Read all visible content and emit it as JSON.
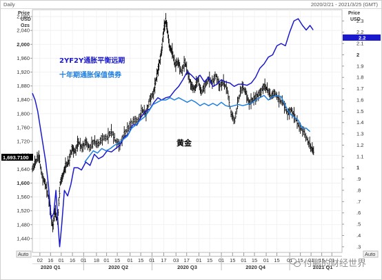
{
  "header": {
    "interval": "Daily",
    "date_range": "2020/2/21 - 2021/3/25 (GMT)"
  },
  "watermark": {
    "text": "付鹏的财经世界",
    "icon": "wechat-icon"
  },
  "colors": {
    "gold": "#000000",
    "breakeven_2y2y": "#1a1acc",
    "tips_10y": "#1f7fe0",
    "price_tag": "#000000",
    "right_tag": "#1a1acc"
  },
  "chart_data": {
    "type": "line",
    "left_axis": {
      "label_lines": [
        "Price",
        "USD",
        "Ozs"
      ],
      "ylim": [
        1400,
        2100
      ],
      "ticks": [
        "1,440",
        "1,480",
        "1,520",
        "1,560",
        "1,600",
        "1,640",
        "1,680",
        "1,720",
        "1,760",
        "1,800",
        "1,840",
        "1,880",
        "1,920",
        "1,960",
        "2,000",
        "2,040",
        "2,080"
      ],
      "bold_ticks": [
        "1,600",
        "2,000"
      ],
      "last_price_tag": "1,693.7100",
      "scale_button": "Auto"
    },
    "right_axis": {
      "label_lines": [
        "Price",
        "USD"
      ],
      "ylim": [
        0.25,
        2.4
      ],
      "ticks": [
        ".3",
        ".4",
        ".5",
        ".6",
        ".7",
        ".8",
        ".9",
        "1",
        "1.1",
        "1.2",
        "1.3",
        "1.4",
        "1.5",
        "1.6",
        "1.7",
        "1.8",
        "1.9",
        "2",
        "2.1",
        "2.2",
        "2.3"
      ],
      "bold_ticks": [
        "1",
        "2"
      ],
      "last_value_tag": "2.2",
      "scale_button": "Auto"
    },
    "x_axis": {
      "ticks": [
        {
          "label": "02",
          "x": 1.4
        },
        {
          "label": "16",
          "x": 3.4
        },
        {
          "label": "01",
          "x": 5.4
        },
        {
          "label": "16",
          "x": 7.5
        },
        {
          "label": "01",
          "x": 9.6
        },
        {
          "label": "18",
          "x": 12.0
        },
        {
          "label": "01",
          "x": 13.9
        },
        {
          "label": "15",
          "x": 15.9
        },
        {
          "label": "01",
          "x": 18.3
        },
        {
          "label": "15",
          "x": 20.3
        },
        {
          "label": "01",
          "x": 22.4
        },
        {
          "label": "17",
          "x": 24.6
        },
        {
          "label": "03",
          "x": 26.9
        },
        {
          "label": "17",
          "x": 28.9
        },
        {
          "label": "01",
          "x": 31.2
        },
        {
          "label": "15",
          "x": 33.2
        },
        {
          "label": "01",
          "x": 35.4
        },
        {
          "label": "15",
          "x": 37.5
        },
        {
          "label": "01",
          "x": 39.6
        },
        {
          "label": "15",
          "x": 41.6
        },
        {
          "label": "01",
          "x": 43.8
        },
        {
          "label": "15",
          "x": 45.8
        },
        {
          "label": "01",
          "x": 48.2
        },
        {
          "label": "15",
          "x": 50.2
        },
        {
          "label": "01",
          "x": 52.2
        },
        {
          "label": "15",
          "x": 54.2
        },
        {
          "label": "01",
          "x": 56.1
        }
      ],
      "periods": [
        {
          "label": "2020 Q1",
          "x": 3.4
        },
        {
          "label": "2020 Q2",
          "x": 16.1
        },
        {
          "label": "2020 Q3",
          "x": 29.0
        },
        {
          "label": "2020 Q4",
          "x": 41.8
        },
        {
          "label": "2021 Q1",
          "x": 54.4
        }
      ],
      "period_separators": [
        9.6,
        22.4,
        35.4,
        48.2
      ],
      "xlim": [
        0,
        58
      ]
    },
    "annotations": {
      "breakeven_label": "2YF2Y通胀平衡远期",
      "tips_label": "十年期通胀保值债券",
      "gold_label": "黄金"
    },
    "series": [
      {
        "name": "黄金",
        "axis": "left",
        "color": "#000000",
        "style": "bars",
        "points": [
          [
            0,
            1640
          ],
          [
            0.6,
            1660
          ],
          [
            1.2,
            1680
          ],
          [
            1.8,
            1620
          ],
          [
            2.4,
            1600
          ],
          [
            3.0,
            1560
          ],
          [
            3.4,
            1520
          ],
          [
            3.8,
            1470
          ],
          [
            4.2,
            1520
          ],
          [
            4.7,
            1490
          ],
          [
            5.2,
            1600
          ],
          [
            5.7,
            1620
          ],
          [
            6.2,
            1650
          ],
          [
            6.8,
            1660
          ],
          [
            7.4,
            1700
          ],
          [
            8.0,
            1690
          ],
          [
            8.6,
            1720
          ],
          [
            9.3,
            1700
          ],
          [
            10.0,
            1720
          ],
          [
            10.7,
            1700
          ],
          [
            11.5,
            1720
          ],
          [
            12.3,
            1710
          ],
          [
            13.1,
            1730
          ],
          [
            14.0,
            1730
          ],
          [
            14.8,
            1750
          ],
          [
            15.6,
            1720
          ],
          [
            16.4,
            1710
          ],
          [
            17.2,
            1740
          ],
          [
            18.0,
            1760
          ],
          [
            18.9,
            1780
          ],
          [
            19.8,
            1780
          ],
          [
            20.6,
            1810
          ],
          [
            21.3,
            1800
          ],
          [
            22.0,
            1840
          ],
          [
            22.7,
            1860
          ],
          [
            23.2,
            1900
          ],
          [
            23.7,
            1940
          ],
          [
            24.2,
            1980
          ],
          [
            24.6,
            2040
          ],
          [
            25.0,
            2070
          ],
          [
            25.3,
            2040
          ],
          [
            25.7,
            1990
          ],
          [
            26.2,
            1980
          ],
          [
            26.7,
            1940
          ],
          [
            27.3,
            1950
          ],
          [
            27.9,
            1920
          ],
          [
            28.6,
            1950
          ],
          [
            29.2,
            1910
          ],
          [
            29.8,
            1880
          ],
          [
            30.4,
            1870
          ],
          [
            31.0,
            1900
          ],
          [
            31.6,
            1860
          ],
          [
            32.3,
            1880
          ],
          [
            33.0,
            1900
          ],
          [
            33.7,
            1890
          ],
          [
            34.4,
            1910
          ],
          [
            35.1,
            1880
          ],
          [
            35.8,
            1890
          ],
          [
            36.5,
            1870
          ],
          [
            37.2,
            1800
          ],
          [
            37.9,
            1780
          ],
          [
            38.6,
            1840
          ],
          [
            39.3,
            1880
          ],
          [
            40.0,
            1860
          ],
          [
            40.6,
            1830
          ],
          [
            41.3,
            1840
          ],
          [
            42.0,
            1850
          ],
          [
            42.7,
            1860
          ],
          [
            43.4,
            1880
          ],
          [
            44.0,
            1870
          ],
          [
            44.7,
            1850
          ],
          [
            45.4,
            1860
          ],
          [
            46.2,
            1840
          ],
          [
            47.0,
            1830
          ],
          [
            47.8,
            1800
          ],
          [
            48.5,
            1810
          ],
          [
            49.2,
            1790
          ],
          [
            50.0,
            1760
          ],
          [
            50.8,
            1750
          ],
          [
            51.6,
            1720
          ],
          [
            52.3,
            1700
          ],
          [
            52.8,
            1690
          ]
        ]
      },
      {
        "name": "2YF2Y通胀平衡远期",
        "axis": "right",
        "color": "#1a1acc",
        "style": "line",
        "points": [
          [
            0,
            1.66
          ],
          [
            0.5,
            1.6
          ],
          [
            1.0,
            1.5
          ],
          [
            1.5,
            1.35
          ],
          [
            2.0,
            1.2
          ],
          [
            2.5,
            1.05
          ],
          [
            3.0,
            0.85
          ],
          [
            3.5,
            0.55
          ],
          [
            4.0,
            0.6
          ],
          [
            4.4,
            0.8
          ],
          [
            4.8,
            0.5
          ],
          [
            5.1,
            0.3
          ],
          [
            5.5,
            0.5
          ],
          [
            6.0,
            0.8
          ],
          [
            6.6,
            0.75
          ],
          [
            7.2,
            0.85
          ],
          [
            7.8,
            1.0
          ],
          [
            8.5,
            1.0
          ],
          [
            9.2,
            0.98
          ],
          [
            10.0,
            1.05
          ],
          [
            10.8,
            1.02
          ],
          [
            11.6,
            1.12
          ],
          [
            12.4,
            1.08
          ],
          [
            13.2,
            1.1
          ],
          [
            14.0,
            1.15
          ],
          [
            14.8,
            1.14
          ],
          [
            15.6,
            1.17
          ],
          [
            16.4,
            1.2
          ],
          [
            17.2,
            1.27
          ],
          [
            18.0,
            1.3
          ],
          [
            18.8,
            1.38
          ],
          [
            19.6,
            1.38
          ],
          [
            20.4,
            1.45
          ],
          [
            21.2,
            1.5
          ],
          [
            22.0,
            1.52
          ],
          [
            22.8,
            1.58
          ],
          [
            23.5,
            1.62
          ],
          [
            24.2,
            1.6
          ],
          [
            25.0,
            1.62
          ],
          [
            25.8,
            1.63
          ],
          [
            26.6,
            1.68
          ],
          [
            27.4,
            1.72
          ],
          [
            28.2,
            1.78
          ],
          [
            29.0,
            1.85
          ],
          [
            29.8,
            1.82
          ],
          [
            30.6,
            1.78
          ],
          [
            31.4,
            1.82
          ],
          [
            32.2,
            1.76
          ],
          [
            33.0,
            1.8
          ],
          [
            33.8,
            1.72
          ],
          [
            34.6,
            1.74
          ],
          [
            35.4,
            1.78
          ],
          [
            36.2,
            1.76
          ],
          [
            37.0,
            1.75
          ],
          [
            37.8,
            1.72
          ],
          [
            38.6,
            1.74
          ],
          [
            39.4,
            1.74
          ],
          [
            40.2,
            1.73
          ],
          [
            41.0,
            1.75
          ],
          [
            41.8,
            1.8
          ],
          [
            42.6,
            1.88
          ],
          [
            43.4,
            1.92
          ],
          [
            44.2,
            1.98
          ],
          [
            45.0,
            2.0
          ],
          [
            45.8,
            2.08
          ],
          [
            46.6,
            2.1
          ],
          [
            47.4,
            2.08
          ],
          [
            48.2,
            2.2
          ],
          [
            49.0,
            2.3
          ],
          [
            49.8,
            2.32
          ],
          [
            50.6,
            2.26
          ],
          [
            51.3,
            2.22
          ],
          [
            52.0,
            2.26
          ],
          [
            52.6,
            2.22
          ]
        ]
      },
      {
        "name": "十年期通胀保值债券",
        "axis": "right",
        "color": "#1f7fe0",
        "style": "line",
        "points": [
          [
            9.8,
            1.05
          ],
          [
            10.6,
            1.1
          ],
          [
            11.4,
            1.15
          ],
          [
            12.2,
            1.13
          ],
          [
            13.0,
            1.17
          ],
          [
            13.8,
            1.15
          ],
          [
            14.6,
            1.17
          ],
          [
            15.4,
            1.2
          ],
          [
            16.2,
            1.22
          ],
          [
            17.0,
            1.25
          ],
          [
            17.8,
            1.28
          ],
          [
            18.6,
            1.35
          ],
          [
            19.4,
            1.38
          ],
          [
            20.2,
            1.42
          ],
          [
            21.0,
            1.45
          ],
          [
            21.8,
            1.5
          ],
          [
            22.6,
            1.56
          ],
          [
            23.4,
            1.58
          ],
          [
            24.2,
            1.6
          ],
          [
            25.0,
            1.6
          ],
          [
            25.8,
            1.62
          ],
          [
            26.6,
            1.6
          ],
          [
            27.4,
            1.62
          ],
          [
            28.2,
            1.6
          ],
          [
            29.0,
            1.58
          ],
          [
            29.8,
            1.6
          ],
          [
            30.6,
            1.58
          ],
          [
            31.4,
            1.55
          ],
          [
            32.2,
            1.57
          ],
          [
            33.0,
            1.55
          ],
          [
            33.8,
            1.57
          ],
          [
            34.6,
            1.55
          ],
          [
            35.4,
            1.58
          ],
          [
            36.2,
            1.55
          ],
          [
            37.0,
            1.54
          ],
          [
            37.8,
            1.55
          ],
          [
            38.6,
            1.56
          ],
          [
            39.4,
            1.55
          ],
          [
            40.2,
            1.56
          ],
          [
            41.0,
            1.57
          ],
          [
            41.8,
            1.6
          ],
          [
            42.6,
            1.62
          ],
          [
            43.4,
            1.64
          ],
          [
            44.2,
            1.6
          ],
          [
            45.0,
            1.63
          ],
          [
            45.8,
            1.64
          ],
          [
            46.6,
            1.63
          ],
          [
            47.4,
            1.55
          ],
          [
            48.2,
            1.48
          ],
          [
            49.0,
            1.45
          ],
          [
            49.8,
            1.42
          ],
          [
            50.6,
            1.35
          ],
          [
            51.3,
            1.35
          ],
          [
            52.0,
            1.32
          ]
        ]
      }
    ]
  }
}
